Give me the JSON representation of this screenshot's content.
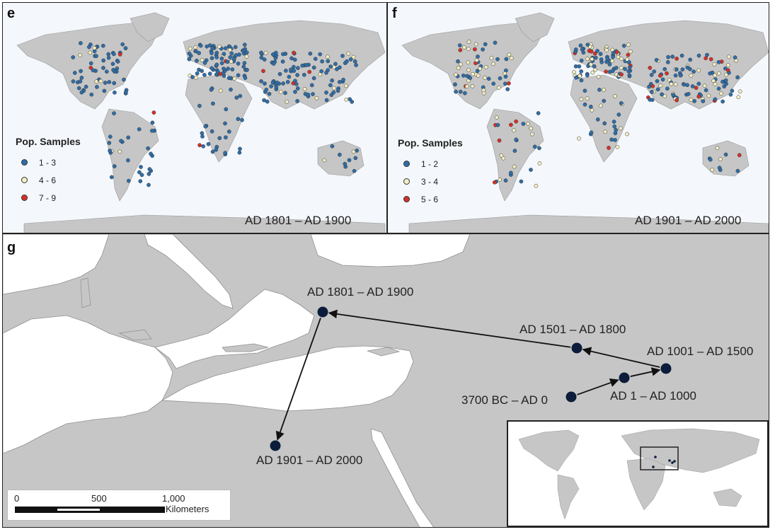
{
  "panels": {
    "e": {
      "letter": "e",
      "period": "AD 1801 – AD 1900",
      "legend": {
        "title": "Pop. Samples",
        "items": [
          {
            "label": "1 - 3",
            "color": "#2f6ea8"
          },
          {
            "label": "4 - 6",
            "color": "#f3efc4"
          },
          {
            "label": "7 - 9",
            "color": "#d73027"
          }
        ]
      }
    },
    "f": {
      "letter": "f",
      "period": "AD 1901 – AD 2000",
      "legend": {
        "title": "Pop. Samples",
        "items": [
          {
            "label": "1 - 2",
            "color": "#2f6ea8"
          },
          {
            "label": "3 - 4",
            "color": "#f3efc4"
          },
          {
            "label": "5 - 6",
            "color": "#d73027"
          }
        ]
      }
    },
    "g": {
      "letter": "g",
      "nodes": [
        {
          "label": "3700 BC – AD 0"
        },
        {
          "label": "AD 1 – AD 1000"
        },
        {
          "label": "AD 1001 – AD 1500"
        },
        {
          "label": "AD 1501 – AD 1800"
        },
        {
          "label": "AD 1801 – AD 1900"
        },
        {
          "label": "AD 1901 – AD 2000"
        }
      ],
      "scale_bar": {
        "ticks": [
          "0",
          "500",
          "1,000"
        ],
        "unit": "Kilometers"
      }
    }
  },
  "colors": {
    "land": "#c6c6c6",
    "sea": "#f4f7fb",
    "node": "#0b1d3a"
  }
}
